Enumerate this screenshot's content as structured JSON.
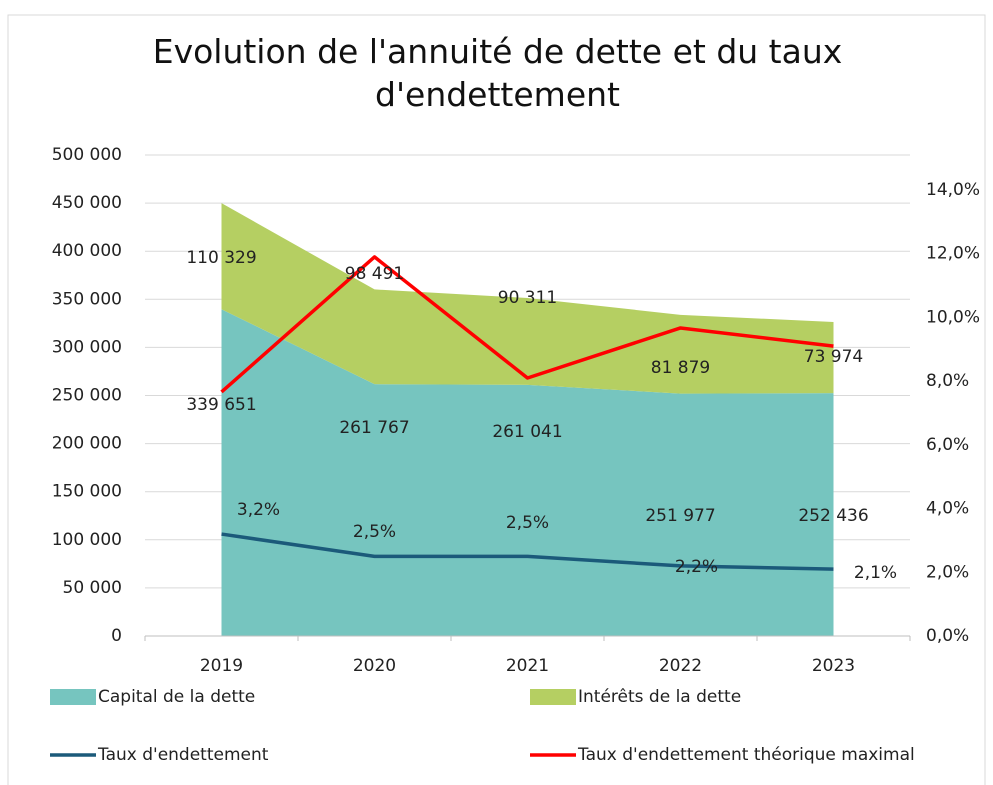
{
  "chart_data": {
    "type": "area",
    "title": "Evolution de l'annuité de dette et du taux d'endettement",
    "categories": [
      "2019",
      "2020",
      "2021",
      "2022",
      "2023"
    ],
    "series": [
      {
        "name": "Capital de la dette",
        "color": "#76c5bf",
        "values": [
          339651,
          261767,
          261041,
          251977,
          252436
        ],
        "value_labels": [
          "339 651",
          "261 767",
          "261 041",
          "251 977",
          "252 436"
        ]
      },
      {
        "name": "Intérêts de la dette",
        "color": "#b5cf62",
        "values": [
          110329,
          98491,
          90311,
          81879,
          73974
        ],
        "value_labels": [
          "110 329",
          "98 491",
          "90 311",
          "81 879",
          "73 974"
        ]
      },
      {
        "name": "Taux d'endettement",
        "type": "line",
        "axis": "y2",
        "color": "#1b5a7a",
        "values": [
          3.2,
          2.5,
          2.5,
          2.2,
          2.1
        ],
        "value_labels": [
          "3,2%",
          "2,5%",
          "2,5%",
          "2,2%",
          "2,1%"
        ]
      },
      {
        "name": "Taux d'endettement théorique maximal",
        "type": "line",
        "axis": "y2",
        "color": "#ff0000",
        "values": [
          7.66,
          11.9,
          8.1,
          9.67,
          9.1
        ]
      }
    ],
    "ylim": [
      0,
      500000
    ],
    "yticks": [
      0,
      {
        "value": 50000,
        "label": "50 000"
      },
      {
        "value": 100000,
        "label": "100 000"
      },
      {
        "value": 150000,
        "label": "150 000"
      },
      {
        "value": 200000,
        "label": "200 000"
      },
      {
        "value": 250000,
        "label": "250 000"
      },
      {
        "value": 300000,
        "label": "300 000"
      },
      {
        "value": 350000,
        "label": "350 000"
      },
      {
        "value": 400000,
        "label": "400 000"
      },
      {
        "value": 450000,
        "label": "450 000"
      },
      {
        "value": 500000,
        "label": "500 000"
      }
    ],
    "y2lim": [
      0,
      15.1
    ],
    "y2ticks": [
      {
        "value": 0,
        "label": "0,0%"
      },
      {
        "value": 2,
        "label": "2,0%"
      },
      {
        "value": 4,
        "label": "4,0%"
      },
      {
        "value": 6,
        "label": "6,0%"
      },
      {
        "value": 8,
        "label": "8,0%"
      },
      {
        "value": 10,
        "label": "10,0%"
      },
      {
        "value": 12,
        "label": "12,0%"
      },
      {
        "value": 14,
        "label": "14,0%"
      }
    ],
    "grid": true,
    "stacked": true
  }
}
